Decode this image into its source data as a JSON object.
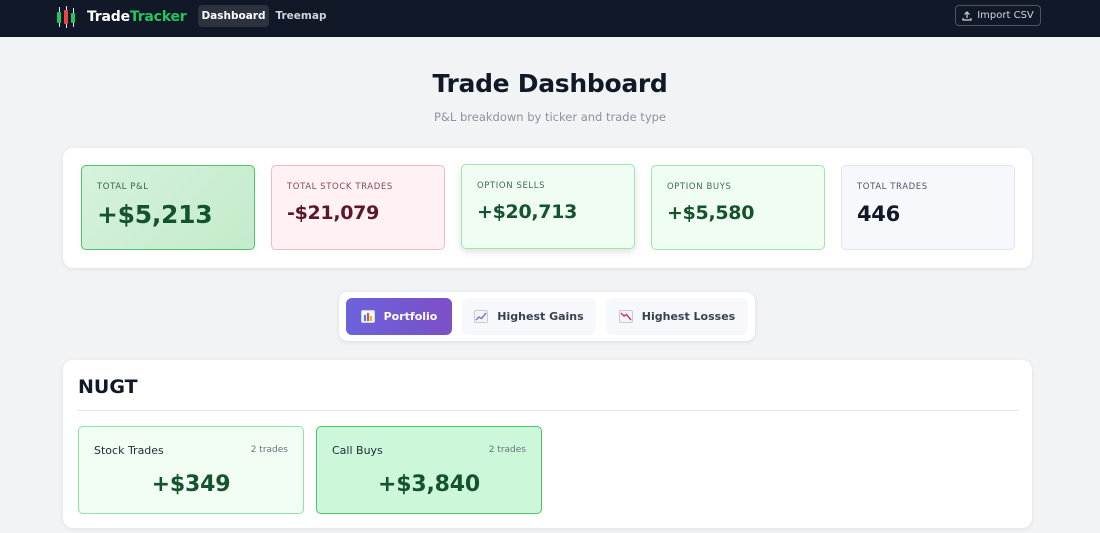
{
  "navbar": {
    "brand_part1": "Trade",
    "brand_part2": "Tracker",
    "links": [
      {
        "label": "Dashboard",
        "active": true
      },
      {
        "label": "Treemap",
        "active": false
      }
    ],
    "import_label": "Import CSV",
    "colors": {
      "background": "#111827",
      "brand_accent": "#22c55e"
    },
    "icons": {
      "logo": "candlestick-icon",
      "import": "upload-icon"
    }
  },
  "header": {
    "title": "Trade Dashboard",
    "subtitle": "P&L breakdown by ticker and trade type"
  },
  "stats": [
    {
      "label": "Total P&L",
      "value": "+$5,213"
    },
    {
      "label": "Total Stock Trades",
      "value": "-$21,079"
    },
    {
      "label": "Option Sells",
      "value": "+$20,713"
    },
    {
      "label": "Option Buys",
      "value": "+$5,580"
    },
    {
      "label": "Total Trades",
      "value": "446"
    }
  ],
  "tabs": [
    {
      "label": "Portfolio",
      "icon": "bar-chart-icon",
      "active": true
    },
    {
      "label": "Highest Gains",
      "icon": "trend-up-icon",
      "active": false
    },
    {
      "label": "Highest Losses",
      "icon": "trend-down-icon",
      "active": false
    }
  ],
  "ticker": {
    "symbol": "NUGT",
    "cards": [
      {
        "label": "Stock Trades",
        "count": "2 trades",
        "value": "+$349"
      },
      {
        "label": "Call Buys",
        "count": "2 trades",
        "value": "+$3,840"
      }
    ]
  },
  "colors": {
    "positive": "#14532d",
    "negative": "#5c1626",
    "tab_active_start": "#6a63dc",
    "tab_active_end": "#7d4fc6"
  }
}
